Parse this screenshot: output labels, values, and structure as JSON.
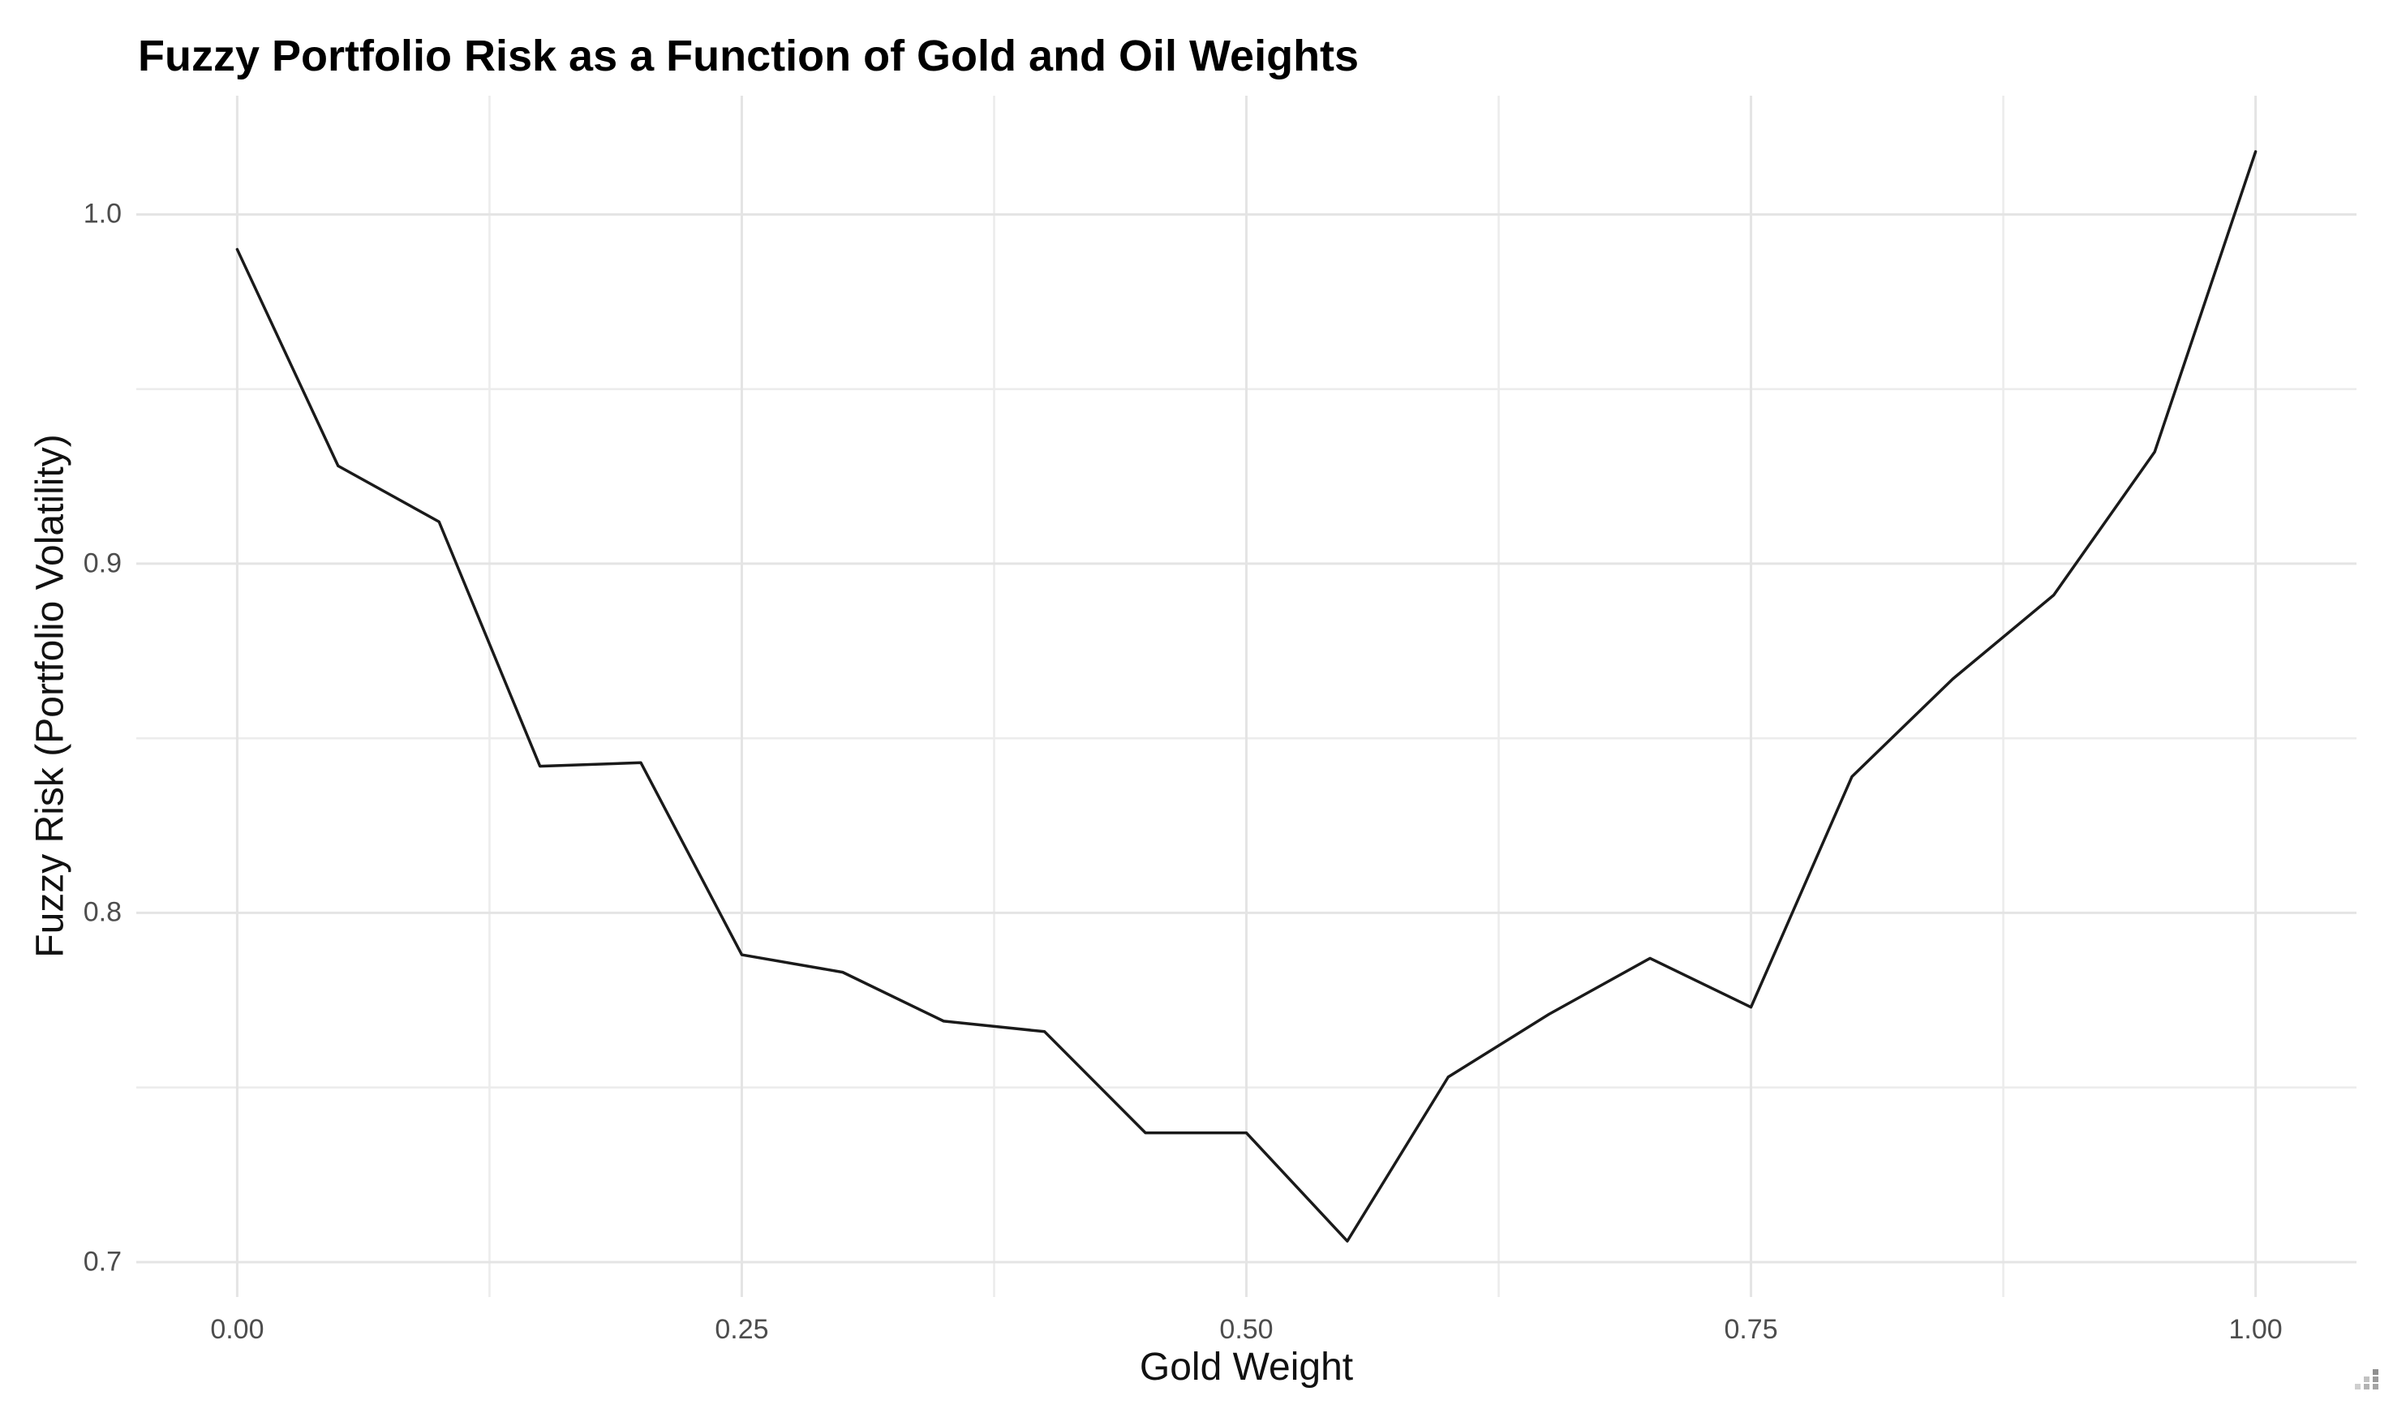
{
  "chart_data": {
    "type": "line",
    "title": "Fuzzy Portfolio Risk as a Function of Gold and Oil Weights",
    "xlabel": "Gold Weight",
    "ylabel": "Fuzzy Risk (Portfolio Volatility)",
    "x": [
      0.0,
      0.05,
      0.1,
      0.15,
      0.2,
      0.25,
      0.3,
      0.35,
      0.4,
      0.45,
      0.5,
      0.55,
      0.6,
      0.65,
      0.7,
      0.75,
      0.8,
      0.85,
      0.9,
      0.95,
      1.0
    ],
    "y": [
      0.99,
      0.928,
      0.912,
      0.842,
      0.843,
      0.788,
      0.783,
      0.769,
      0.766,
      0.737,
      0.737,
      0.706,
      0.753,
      0.771,
      0.787,
      0.773,
      0.839,
      0.867,
      0.891,
      0.932,
      1.018
    ],
    "x_tick_labels": [
      "0.00",
      "0.25",
      "0.50",
      "0.75",
      "1.00"
    ],
    "x_tick_values": [
      0,
      0.25,
      0.5,
      0.75,
      1.0
    ],
    "x_minor_values": [
      0.125,
      0.375,
      0.625,
      0.875
    ],
    "y_tick_labels": [
      "0.7",
      "0.8",
      "0.9",
      "1.0"
    ],
    "y_tick_values": [
      0.7,
      0.8,
      0.9,
      1.0
    ],
    "y_minor_values": [
      0.75,
      0.85,
      0.95
    ],
    "xlim": [
      -0.05,
      1.05
    ],
    "ylim": [
      0.69,
      1.034
    ],
    "grid": "major and minor gridlines, light gray on white, no axis lines, no tick marks",
    "legend": "none",
    "line_color": "#1a1a1a",
    "major_grid_color": "#e4e4e4",
    "minor_grid_color": "#ececec",
    "axis_text_color": "#4d4d4d",
    "title_color": "#000000"
  },
  "ui": {
    "resize_grip_icon": "resize-grip"
  }
}
